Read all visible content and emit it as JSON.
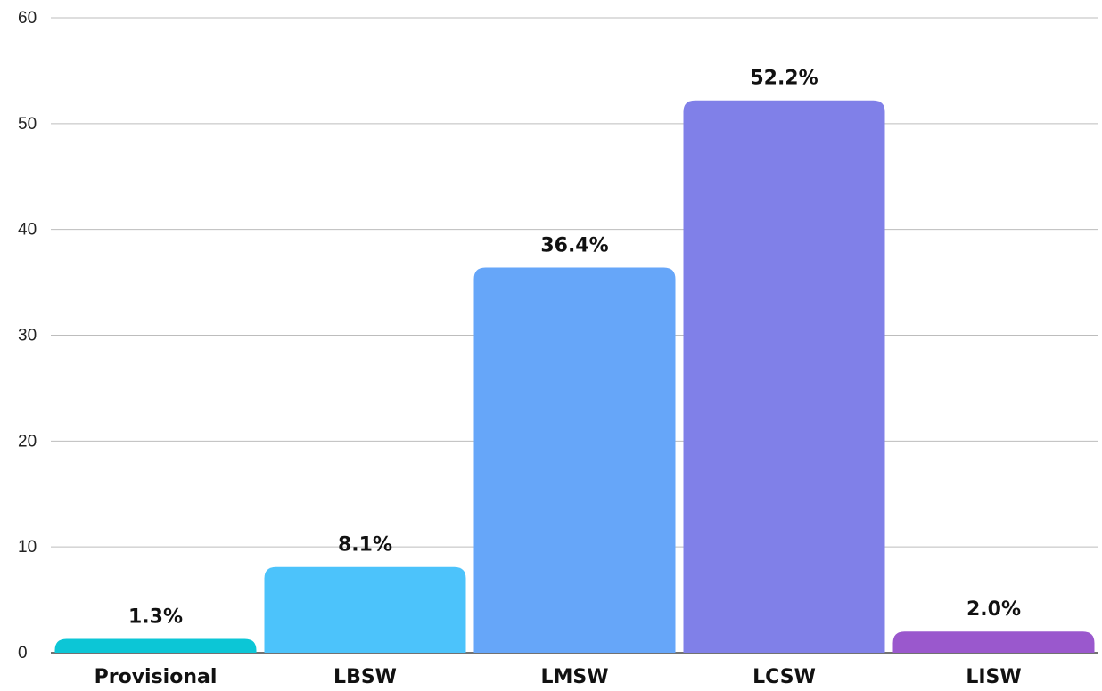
{
  "chart_data": {
    "type": "bar",
    "categories": [
      "Provisional",
      "LBSW",
      "LMSW",
      "LCSW",
      "LISW"
    ],
    "values": [
      1.3,
      8.1,
      36.4,
      52.2,
      2.0
    ],
    "data_labels": [
      "1.3%",
      "8.1%",
      "36.4%",
      "52.2%",
      "2.0%"
    ],
    "colors": [
      "#0cc6d6",
      "#4cc3fb",
      "#66a6f9",
      "#8080e8",
      "#9a58cd"
    ],
    "ylim": [
      0,
      60
    ],
    "yticks": [
      0,
      10,
      20,
      30,
      40,
      50,
      60
    ],
    "grid": true,
    "legend": "none",
    "title": "",
    "xlabel": "",
    "ylabel": ""
  }
}
